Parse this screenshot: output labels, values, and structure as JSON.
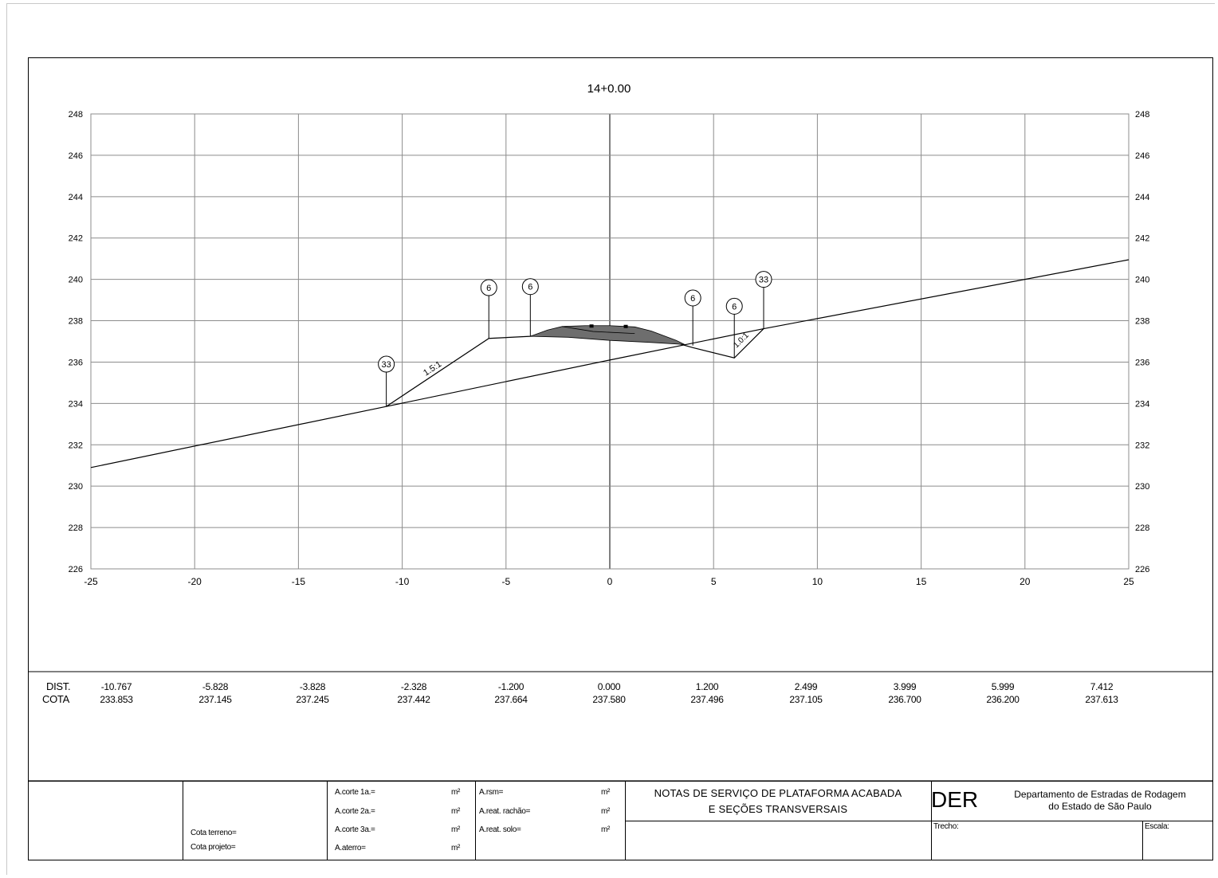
{
  "section": {
    "station": "14+0.00",
    "x_ticks": [
      "-25",
      "-20",
      "-15",
      "-10",
      "-5",
      "0",
      "5",
      "10",
      "15",
      "20",
      "25"
    ],
    "y_ticks": [
      "248",
      "246",
      "244",
      "242",
      "240",
      "238",
      "236",
      "234",
      "232",
      "230",
      "228",
      "226"
    ],
    "slope_labels": {
      "cut_left": "1.5:1",
      "fill_right": "1.0:1"
    },
    "markers": [
      "33",
      "6",
      "6",
      "6",
      "6",
      "33"
    ]
  },
  "chart_data": {
    "type": "line",
    "title": "14+0.00",
    "xlim": [
      -25,
      25
    ],
    "ylim": [
      226,
      248
    ],
    "grid": true,
    "series": [
      {
        "values": [
          [
            -25,
            230.9
          ],
          [
            -10.767,
            233.853
          ],
          [
            0,
            236.1
          ],
          [
            7.412,
            237.613
          ],
          [
            25,
            240.95
          ]
        ]
      },
      {
        "values": [
          [
            -10.767,
            233.853
          ],
          [
            -5.828,
            237.145
          ],
          [
            -3.828,
            237.245
          ],
          [
            -1.2,
            237.664
          ],
          [
            0,
            237.58
          ],
          [
            1.2,
            237.496
          ],
          [
            3.999,
            236.7
          ],
          [
            5.999,
            236.2
          ],
          [
            7.412,
            237.613
          ]
        ]
      }
    ]
  },
  "table": {
    "dist_label": "DIST.",
    "cota_label": "COTA",
    "dist": [
      "-10.767",
      "-5.828",
      "-3.828",
      "-2.328",
      "-1.200",
      "0.000",
      "1.200",
      "2.499",
      "3.999",
      "5.999",
      "7.412"
    ],
    "cota": [
      "233.853",
      "237.145",
      "237.245",
      "237.442",
      "237.664",
      "237.580",
      "237.496",
      "237.105",
      "236.700",
      "236.200",
      "237.613"
    ]
  },
  "titleblock": {
    "cota_terreno": "Cota terreno=",
    "cota_projeto": "Cota projeto=",
    "a_corte_1": "A.corte 1a.=",
    "a_corte_2": "A.corte 2a.=",
    "a_corte_3": "A.corte 3a.=",
    "a_aterro": "A.aterro=",
    "a_rsm": "A.rsm=",
    "a_reat_rachao": "A.reat. rachão=",
    "a_reat_solo": "A.reat. solo=",
    "unit": "m²",
    "notes_line1": "NOTAS DE SERVIÇO DE PLATAFORMA ACABADA",
    "notes_line2": "E SEÇÕES TRANSVERSAIS",
    "der_logo": "DER",
    "der_name_line1": "Departamento de Estradas de Rodagem",
    "der_name_line2": "do Estado de São Paulo",
    "trecho": "Trecho:",
    "escala": "Escala:"
  }
}
